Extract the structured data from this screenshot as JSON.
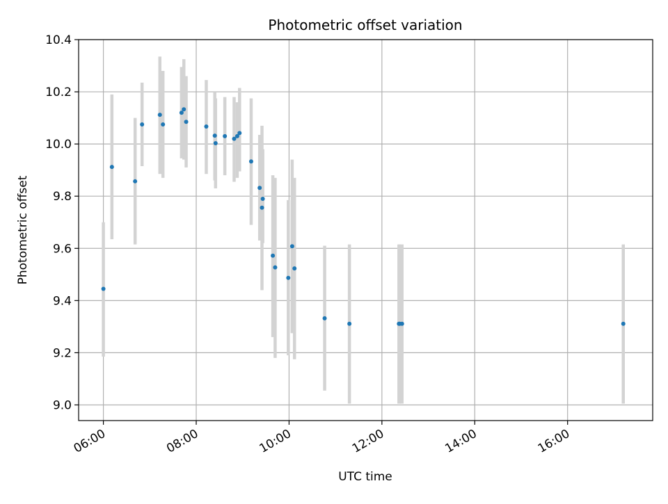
{
  "chart_data": {
    "type": "scatter",
    "title": "Photometric offset variation",
    "xlabel": "UTC time",
    "ylabel": "Photometric offset",
    "x_unit": "hours UTC",
    "xlim": [
      "05:28",
      "17:50"
    ],
    "ylim": [
      8.94,
      10.4
    ],
    "grid": true,
    "x_ticks": [
      "06:00",
      "08:00",
      "10:00",
      "12:00",
      "14:00",
      "16:00"
    ],
    "y_ticks": [
      "9.0",
      "9.2",
      "9.4",
      "9.6",
      "9.8",
      "10.0",
      "10.2",
      "10.4"
    ],
    "point_color": "#1f77b4",
    "errorbar_color": "#d3d3d3",
    "points": [
      {
        "x": "06:00",
        "y": 9.445,
        "err_low": 9.185,
        "err_high": 9.7
      },
      {
        "x": "06:11",
        "y": 9.912,
        "err_low": 9.635,
        "err_high": 10.19
      },
      {
        "x": "06:41",
        "y": 9.857,
        "err_low": 9.615,
        "err_high": 10.1
      },
      {
        "x": "06:50",
        "y": 10.075,
        "err_low": 9.915,
        "err_high": 10.235
      },
      {
        "x": "07:13",
        "y": 10.112,
        "err_low": 9.885,
        "err_high": 10.335
      },
      {
        "x": "07:17",
        "y": 10.075,
        "err_low": 9.87,
        "err_high": 10.28
      },
      {
        "x": "07:41",
        "y": 10.12,
        "err_low": 9.945,
        "err_high": 10.295
      },
      {
        "x": "07:44",
        "y": 10.133,
        "err_low": 9.94,
        "err_high": 10.325
      },
      {
        "x": "07:47",
        "y": 10.085,
        "err_low": 9.91,
        "err_high": 10.26
      },
      {
        "x": "08:13",
        "y": 10.067,
        "err_low": 9.885,
        "err_high": 10.245
      },
      {
        "x": "08:24",
        "y": 10.032,
        "err_low": 9.86,
        "err_high": 10.2
      },
      {
        "x": "08:25",
        "y": 10.003,
        "err_low": 9.83,
        "err_high": 10.175
      },
      {
        "x": "08:37",
        "y": 10.03,
        "err_low": 9.88,
        "err_high": 10.18
      },
      {
        "x": "08:49",
        "y": 10.02,
        "err_low": 9.855,
        "err_high": 10.18
      },
      {
        "x": "08:53",
        "y": 10.03,
        "err_low": 9.87,
        "err_high": 10.16
      },
      {
        "x": "08:56",
        "y": 10.042,
        "err_low": 9.895,
        "err_high": 10.215
      },
      {
        "x": "09:11",
        "y": 9.933,
        "err_low": 9.69,
        "err_high": 10.175
      },
      {
        "x": "09:22",
        "y": 9.832,
        "err_low": 9.63,
        "err_high": 10.035
      },
      {
        "x": "09:25",
        "y": 9.756,
        "err_low": 9.44,
        "err_high": 10.07
      },
      {
        "x": "09:26",
        "y": 9.79,
        "err_low": 9.62,
        "err_high": 9.98
      },
      {
        "x": "09:39",
        "y": 9.572,
        "err_low": 9.26,
        "err_high": 9.88
      },
      {
        "x": "09:42",
        "y": 9.527,
        "err_low": 9.18,
        "err_high": 9.87
      },
      {
        "x": "09:59",
        "y": 9.487,
        "err_low": 9.19,
        "err_high": 9.785
      },
      {
        "x": "10:04",
        "y": 9.608,
        "err_low": 9.275,
        "err_high": 9.94
      },
      {
        "x": "10:07",
        "y": 9.523,
        "err_low": 9.175,
        "err_high": 9.87
      },
      {
        "x": "10:46",
        "y": 9.332,
        "err_low": 9.055,
        "err_high": 9.61
      },
      {
        "x": "11:18",
        "y": 9.311,
        "err_low": 9.005,
        "err_high": 9.615
      },
      {
        "x": "12:22",
        "y": 9.311,
        "err_low": 9.005,
        "err_high": 9.615
      },
      {
        "x": "12:23",
        "y": 9.311,
        "err_low": 9.005,
        "err_high": 9.615
      },
      {
        "x": "12:26",
        "y": 9.311,
        "err_low": 9.005,
        "err_high": 9.615
      },
      {
        "x": "17:12",
        "y": 9.311,
        "err_low": 9.005,
        "err_high": 9.615
      }
    ]
  }
}
